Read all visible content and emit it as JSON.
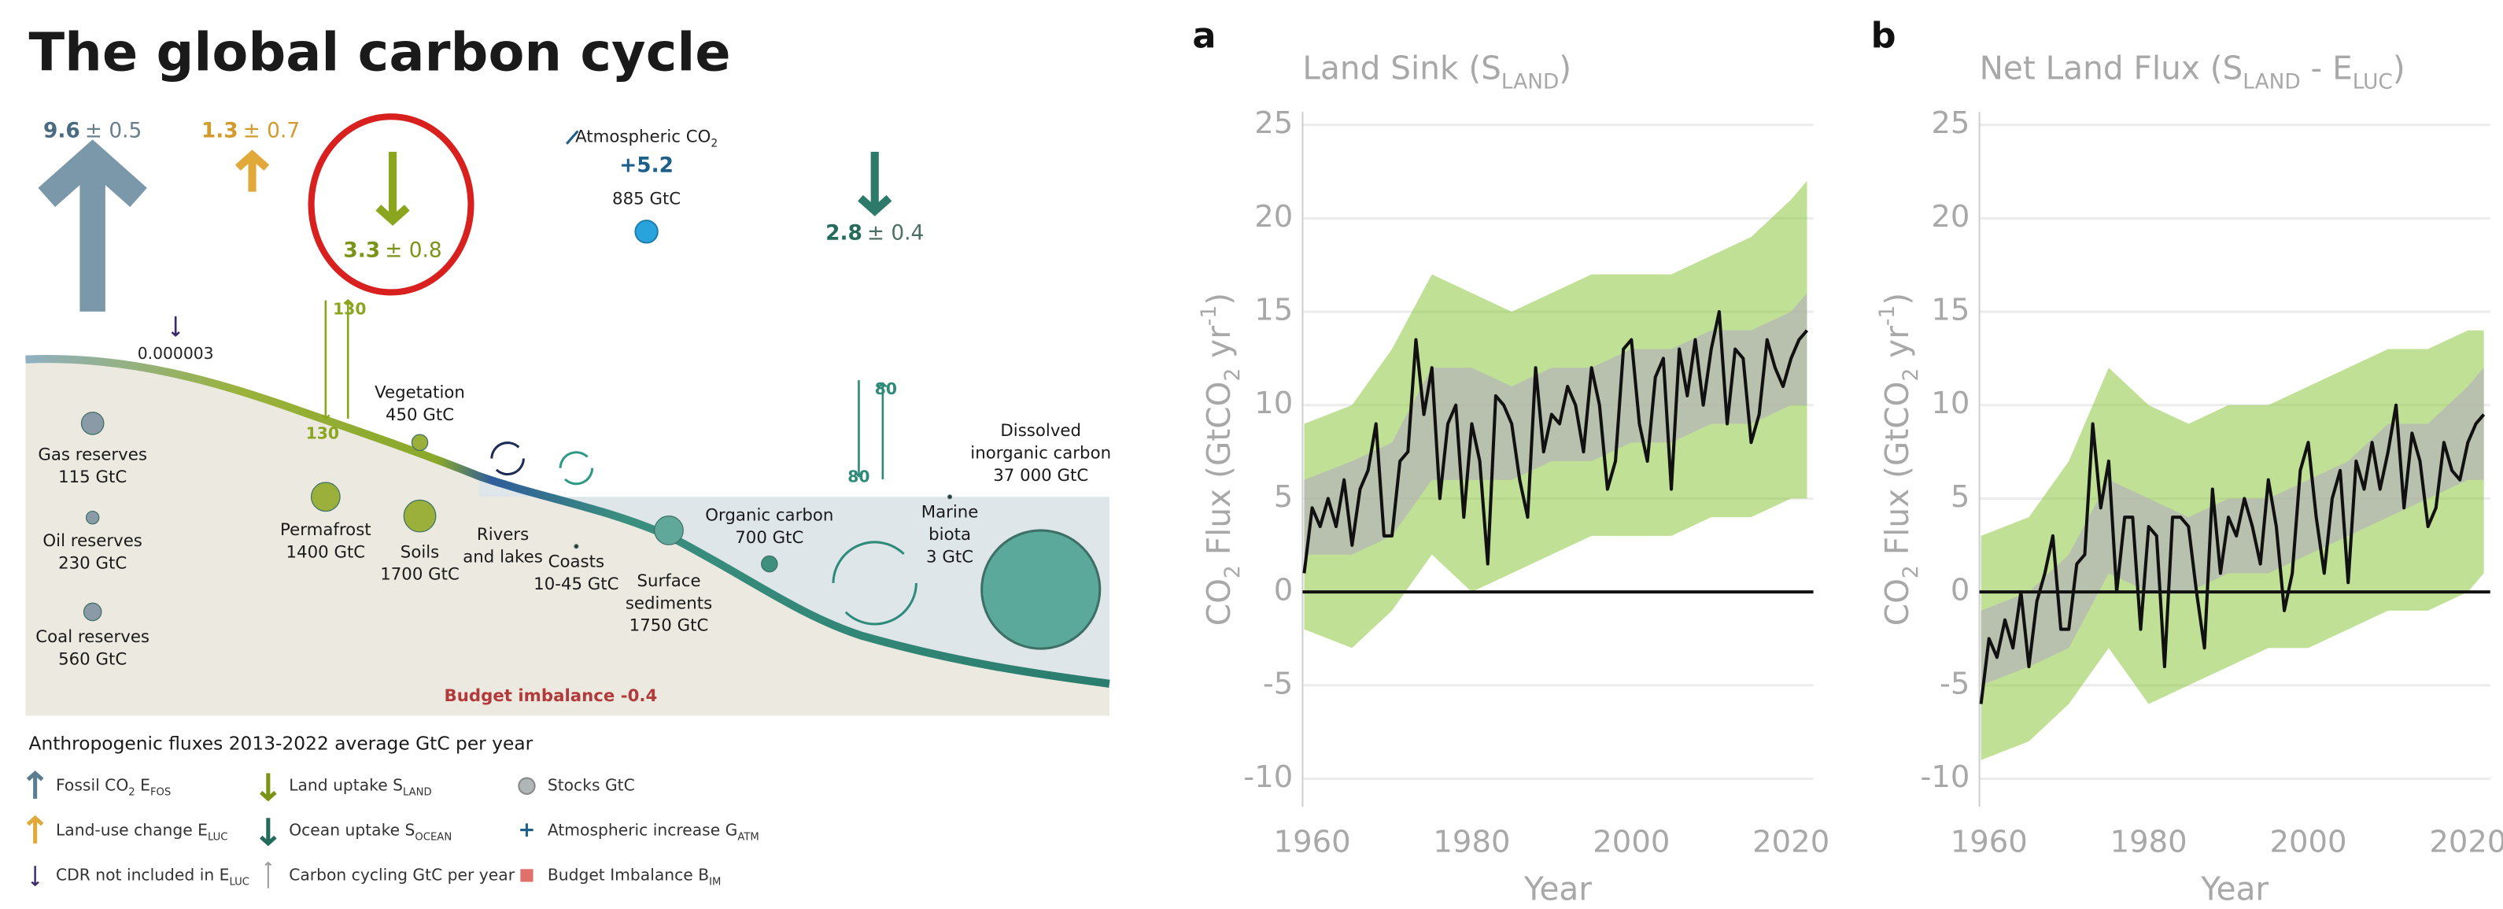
{
  "diagram": {
    "title": "The global carbon cycle",
    "fluxes": {
      "fossil": {
        "value": "9.6",
        "uncertainty": "± 0.5"
      },
      "land_use": {
        "value": "1.3",
        "uncertainty": "± 0.7"
      },
      "land_uptake": {
        "value": "3.3",
        "uncertainty": "± 0.8"
      },
      "ocean_uptake": {
        "value": "2.8",
        "uncertainty": "± 0.4"
      },
      "atmosphere": {
        "label": [
          {
            "t": "Atmospheric CO"
          },
          {
            "t": "2",
            "sub": true
          }
        ],
        "increase": "+5.2",
        "stock": "885 GtC"
      },
      "cdr": "0.000003",
      "land_cycling": [
        "130",
        "130"
      ],
      "ocean_cycling": [
        "80",
        "80"
      ]
    },
    "stocks": [
      {
        "lines": [
          "Gas reserves",
          "115 GtC"
        ]
      },
      {
        "lines": [
          "Oil reserves",
          "230 GtC"
        ]
      },
      {
        "lines": [
          "Coal reserves",
          "560 GtC"
        ]
      },
      {
        "lines": [
          "Vegetation",
          "450 GtC"
        ]
      },
      {
        "lines": [
          "Permafrost",
          "1400 GtC"
        ]
      },
      {
        "lines": [
          "Soils",
          "1700 GtC"
        ]
      },
      {
        "lines": [
          "Rivers",
          "and lakes"
        ]
      },
      {
        "lines": [
          "Coasts",
          "10-45 GtC"
        ]
      },
      {
        "lines": [
          "Surface",
          "sediments",
          "1750 GtC"
        ]
      },
      {
        "lines": [
          "Organic carbon",
          "700 GtC"
        ]
      },
      {
        "lines": [
          "Marine",
          "biota",
          "3 GtC"
        ]
      },
      {
        "lines": [
          "Dissolved",
          "inorganic carbon",
          "37 000 GtC"
        ]
      }
    ],
    "budget_imbalance": "Budget imbalance -0.4",
    "legend": {
      "heading": "Anthropogenic fluxes 2013-2022 average GtC per year",
      "items": [
        [
          {
            "t": "Fossil CO"
          },
          {
            "t": "2",
            "sub": true
          },
          {
            "t": " E"
          },
          {
            "t": "FOS",
            "sub": true
          }
        ],
        [
          {
            "t": "Land-use change E"
          },
          {
            "t": "LUC",
            "sub": true
          }
        ],
        [
          {
            "t": "CDR not included in E"
          },
          {
            "t": "LUC",
            "sub": true
          }
        ],
        [
          {
            "t": "Land uptake S"
          },
          {
            "t": "LAND",
            "sub": true
          }
        ],
        [
          {
            "t": "Ocean uptake S"
          },
          {
            "t": "OCEAN",
            "sub": true
          }
        ],
        [
          {
            "t": "Carbon cycling GtC per year"
          }
        ],
        [
          {
            "t": "Stocks GtC"
          }
        ],
        [
          {
            "t": "Atmospheric increase G"
          },
          {
            "t": "ATM",
            "sub": true
          }
        ],
        [
          {
            "t": "Budget Imbalance B"
          },
          {
            "t": "IM",
            "sub": true
          }
        ]
      ]
    }
  },
  "chart_data": [
    {
      "type": "line",
      "panel_label": "a",
      "title": [
        {
          "t": "Land Sink (S"
        },
        {
          "t": "LAND",
          "sub": true
        },
        {
          "t": ")"
        }
      ],
      "ylabel": [
        {
          "t": "CO"
        },
        {
          "t": "2",
          "sub": true
        },
        {
          "t": " Flux (GtCO"
        },
        {
          "t": "2",
          "sub": true
        },
        {
          "t": " yr"
        },
        {
          "t": "-1",
          "sup": true
        },
        {
          "t": ")"
        }
      ],
      "xlabel": "Year",
      "xlim": [
        1958.8,
        2022.8
      ],
      "xticks": [
        1960,
        1980,
        2000,
        2020
      ],
      "ylim": [
        -11.5,
        25.7
      ],
      "yticks": [
        -10,
        -5,
        0,
        5,
        10,
        15,
        20,
        25
      ],
      "grid": true,
      "x": [
        1959,
        1960,
        1961,
        1962,
        1963,
        1964,
        1965,
        1966,
        1967,
        1968,
        1969,
        1970,
        1971,
        1972,
        1973,
        1974,
        1975,
        1976,
        1977,
        1978,
        1979,
        1980,
        1981,
        1982,
        1983,
        1984,
        1985,
        1986,
        1987,
        1988,
        1989,
        1990,
        1991,
        1992,
        1993,
        1994,
        1995,
        1996,
        1997,
        1998,
        1999,
        2000,
        2001,
        2002,
        2003,
        2004,
        2005,
        2006,
        2007,
        2008,
        2009,
        2010,
        2011,
        2012,
        2013,
        2014,
        2015,
        2016,
        2017,
        2018,
        2019,
        2020,
        2021,
        2022
      ],
      "series": [
        {
          "color": "#111111",
          "values": [
            1.0,
            4.5,
            3.5,
            5,
            3.5,
            6,
            2.5,
            5.5,
            6.5,
            9,
            3,
            3,
            7,
            7.5,
            13.5,
            9.5,
            12,
            5,
            9,
            10,
            4,
            9,
            7,
            1.5,
            10.5,
            10,
            9,
            6,
            4,
            12,
            7.5,
            9.5,
            9,
            11,
            10,
            7.5,
            12,
            10,
            5.5,
            7,
            13,
            13.5,
            9,
            7,
            11.5,
            12.5,
            5.5,
            13,
            10.5,
            13.5,
            10,
            13,
            15,
            9,
            13,
            12.5,
            8,
            9.5,
            13.5,
            12,
            11,
            12.5,
            13.5,
            14
          ]
        }
      ],
      "band_x": [
        1959,
        1965,
        1970,
        1975,
        1980,
        1985,
        1990,
        1995,
        2000,
        2005,
        2010,
        2015,
        2020,
        2022
      ],
      "bands": [
        {
          "color": "#8cc63f",
          "lower": [
            -2,
            -3,
            -1,
            2,
            0,
            1,
            2,
            3,
            3,
            3,
            4,
            4,
            5,
            5
          ],
          "upper": [
            9,
            10,
            13,
            17,
            16,
            15,
            16,
            17,
            17,
            17,
            18,
            19,
            21,
            22
          ]
        },
        {
          "color": "#b5b5b5",
          "lower": [
            2,
            2,
            3,
            6,
            6,
            6,
            7,
            7,
            8,
            8,
            9,
            9,
            10,
            10
          ],
          "upper": [
            6,
            7,
            8,
            12,
            12,
            11,
            12,
            12,
            13,
            13,
            14,
            14,
            15,
            16
          ]
        }
      ]
    },
    {
      "type": "line",
      "panel_label": "b",
      "title": [
        {
          "t": "Net Land Flux (S"
        },
        {
          "t": "LAND",
          "sub": true
        },
        {
          "t": " - E"
        },
        {
          "t": "LUC",
          "sub": true
        },
        {
          "t": ")"
        }
      ],
      "ylabel": [
        {
          "t": "CO"
        },
        {
          "t": "2",
          "sub": true
        },
        {
          "t": " Flux (GtCO"
        },
        {
          "t": "2",
          "sub": true
        },
        {
          "t": " yr"
        },
        {
          "t": "-1",
          "sup": true
        },
        {
          "t": ")"
        }
      ],
      "xlabel": "Year",
      "xlim": [
        1958.8,
        2022.8
      ],
      "xticks": [
        1960,
        1980,
        2000,
        2020
      ],
      "ylim": [
        -11.5,
        25.7
      ],
      "yticks": [
        -10,
        -5,
        0,
        5,
        10,
        15,
        20,
        25
      ],
      "grid": true,
      "x": [
        1959,
        1960,
        1961,
        1962,
        1963,
        1964,
        1965,
        1966,
        1967,
        1968,
        1969,
        1970,
        1971,
        1972,
        1973,
        1974,
        1975,
        1976,
        1977,
        1978,
        1979,
        1980,
        1981,
        1982,
        1983,
        1984,
        1985,
        1986,
        1987,
        1988,
        1989,
        1990,
        1991,
        1992,
        1993,
        1994,
        1995,
        1996,
        1997,
        1998,
        1999,
        2000,
        2001,
        2002,
        2003,
        2004,
        2005,
        2006,
        2007,
        2008,
        2009,
        2010,
        2011,
        2012,
        2013,
        2014,
        2015,
        2016,
        2017,
        2018,
        2019,
        2020,
        2021,
        2022
      ],
      "series": [
        {
          "color": "#111111",
          "values": [
            -6,
            -2.5,
            -3.5,
            -1.5,
            -3,
            0,
            -4,
            -0.5,
            1,
            3,
            -2,
            -2,
            1.5,
            2,
            9,
            4.5,
            7,
            0,
            4,
            4,
            -2,
            3.5,
            3,
            -4,
            4,
            4,
            3.5,
            0,
            -3,
            5.5,
            1,
            4,
            3,
            5,
            3.5,
            1.5,
            6,
            3.5,
            -1,
            1,
            6.5,
            8,
            4,
            1,
            5,
            6.5,
            0.5,
            7,
            5.5,
            8,
            5.5,
            7.5,
            10,
            4.5,
            8.5,
            7,
            3.5,
            4.5,
            8,
            6.5,
            6,
            8,
            9,
            9.5
          ]
        }
      ],
      "band_x": [
        1959,
        1965,
        1970,
        1975,
        1980,
        1985,
        1990,
        1995,
        2000,
        2005,
        2010,
        2015,
        2020,
        2022
      ],
      "bands": [
        {
          "color": "#8cc63f",
          "lower": [
            -9,
            -8,
            -6,
            -3,
            -6,
            -5,
            -4,
            -3,
            -3,
            -2,
            -1,
            -1,
            0,
            1
          ],
          "upper": [
            3,
            4,
            7,
            12,
            10,
            9,
            10,
            10,
            11,
            12,
            13,
            13,
            14,
            14
          ]
        },
        {
          "color": "#b5b5b5",
          "lower": [
            -5,
            -4,
            -3,
            1,
            0,
            0,
            1,
            1,
            2,
            3,
            4,
            5,
            6,
            6
          ],
          "upper": [
            -1,
            0,
            2,
            6,
            5,
            4,
            5,
            5,
            6,
            7,
            9,
            9,
            11,
            12
          ]
        }
      ]
    }
  ]
}
